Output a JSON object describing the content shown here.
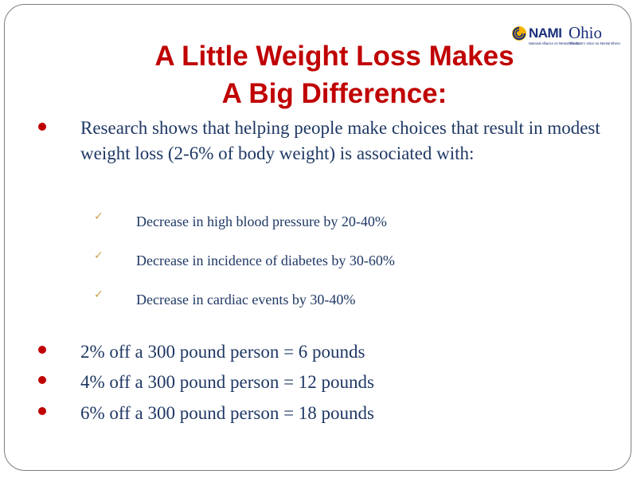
{
  "logo": {
    "brand": "NAMI",
    "state": "Ohio",
    "tagline_left": "National Alliance on Mental Illness",
    "tagline_right": "The State's Voice on Mental Illness"
  },
  "title": {
    "line1": "A Little Weight Loss Makes",
    "line2": "A Big Difference:"
  },
  "intro": "Research shows that helping people make choices that result in modest weight loss (2-6% of body weight) is associated with:",
  "benefits": [
    "Decrease in high blood pressure by 20-40%",
    "Decrease in incidence of diabetes by 30-60%",
    "Decrease in cardiac events by 30-40%"
  ],
  "stats": [
    "2% off a 300 pound person = 6 pounds",
    "4% off a 300 pound person = 12 pounds",
    "6% off a 300 pound person = 18 pounds"
  ],
  "colors": {
    "title": "#c00000",
    "body_text": "#1f3864",
    "bullet": "#c00000",
    "checkmark": "#c9a24a",
    "logo": "#1a2f7a"
  },
  "icons": {
    "bullet": "filled-circle",
    "sub_bullet": "checkmark",
    "logo_mark": "nami-swirl-icon"
  }
}
